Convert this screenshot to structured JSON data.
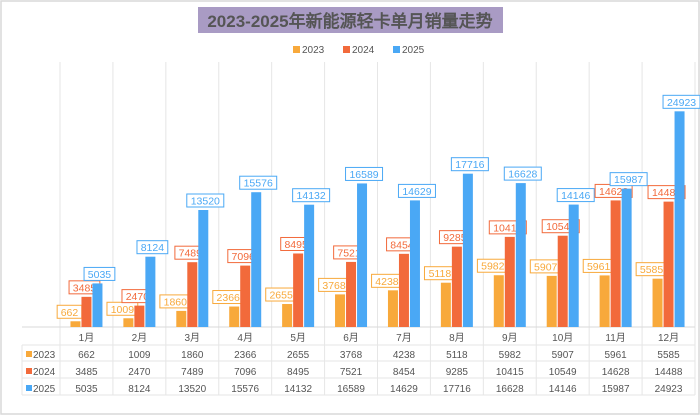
{
  "chart_data": {
    "type": "bar",
    "title": "2023-2025年新能源轻卡单月销量走势",
    "categories": [
      "1月",
      "2月",
      "3月",
      "4月",
      "5月",
      "6月",
      "7月",
      "8月",
      "9月",
      "10月",
      "11月",
      "12月"
    ],
    "series": [
      {
        "name": "2023",
        "color": "#F8A93B",
        "values": [
          662,
          1009,
          1860,
          2366,
          2655,
          3768,
          4238,
          5118,
          5982,
          5907,
          5961,
          5585
        ]
      },
      {
        "name": "2024",
        "color": "#F26A3B",
        "values": [
          3485,
          2470,
          7489,
          7096,
          8495,
          7521,
          8454,
          9285,
          10415,
          10549,
          14628,
          14488
        ]
      },
      {
        "name": "2025",
        "color": "#4AA8F5",
        "values": [
          5035,
          8124,
          13520,
          15576,
          14132,
          16589,
          14629,
          17716,
          16628,
          14146,
          15987,
          24923
        ]
      }
    ],
    "ylim": [
      0,
      26000
    ],
    "legend": "top-center",
    "data_table": true,
    "title_background": "#A99BC4"
  }
}
